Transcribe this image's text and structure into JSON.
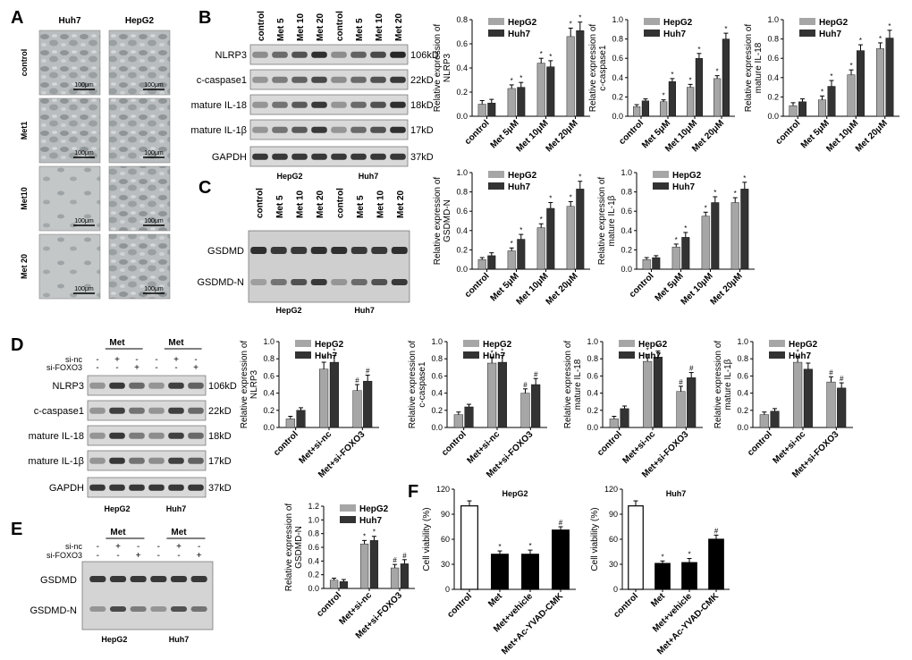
{
  "panel_letters": {
    "a": "A",
    "b": "B",
    "c": "C",
    "d": "D",
    "e": "E",
    "f": "F"
  },
  "colors": {
    "hepg2": "#a6a6a6",
    "huh7": "#333333",
    "control_bar": "#ffffff",
    "treated_bar": "#000000",
    "cell_bg": "#b9bdbf"
  },
  "panel_a": {
    "columns": [
      "Huh7",
      "HepG2"
    ],
    "rows": [
      "control",
      "Met1",
      "Met10",
      "Met 20"
    ],
    "scale_label": "100μm"
  },
  "panel_b": {
    "lanes": [
      "control",
      "Met 5",
      "Met 10",
      "Met 20",
      "control",
      "Met 5",
      "Met 10",
      "Met 20"
    ],
    "bands": [
      {
        "name": "NLRP3",
        "kd": "106kD"
      },
      {
        "name": "c-caspase1",
        "kd": "22kD"
      },
      {
        "name": "mature IL-18",
        "kd": "18kD"
      },
      {
        "name": "mature IL-1β",
        "kd": "17kD"
      },
      {
        "name": "GAPDH",
        "kd": "37kD"
      }
    ],
    "groups": [
      "HepG2",
      "Huh7"
    ]
  },
  "panel_c": {
    "lanes": [
      "control",
      "Met 5",
      "Met 10",
      "Met 20",
      "control",
      "Met 5",
      "Met 10",
      "Met 20"
    ],
    "bands": [
      "GSDMD",
      "GSDMD-N"
    ],
    "groups": [
      "HepG2",
      "Huh7"
    ]
  },
  "panel_d": {
    "met_label": "Met",
    "rows": [
      {
        "name": "si-nc",
        "hepg2": [
          "-",
          "+",
          "-"
        ],
        "huh7": [
          "-",
          "+",
          "-"
        ]
      },
      {
        "name": "si-FOXO3",
        "hepg2": [
          "-",
          "-",
          "+"
        ],
        "huh7": [
          "-",
          "-",
          "+"
        ]
      }
    ],
    "bands": [
      {
        "name": "NLRP3",
        "kd": "106kD"
      },
      {
        "name": "c-caspase1",
        "kd": "22kD"
      },
      {
        "name": "mature IL-18",
        "kd": "18kD"
      },
      {
        "name": "mature IL-1β",
        "kd": "17kD"
      },
      {
        "name": "GAPDH",
        "kd": "37kD"
      }
    ],
    "groups": [
      "HepG2",
      "Huh7"
    ]
  },
  "panel_e": {
    "met_label": "Met",
    "rows": [
      {
        "name": "si-nc",
        "hepg2": [
          "-",
          "+",
          "-"
        ],
        "huh7": [
          "-",
          "+",
          "-"
        ]
      },
      {
        "name": "si-FOXO3",
        "hepg2": [
          "-",
          "-",
          "+"
        ],
        "huh7": [
          "-",
          "-",
          "+"
        ]
      }
    ],
    "bands": [
      "GSDMD",
      "GSDMD-N"
    ],
    "groups": [
      "HepG2",
      "Huh7"
    ]
  },
  "chart_data": [
    {
      "id": "b1",
      "type": "bar",
      "ylabel": [
        "Relative expression of",
        "NLRP3"
      ],
      "categories": [
        "control",
        "Met 5μM",
        "Met 10μM",
        "Met 20μM"
      ],
      "series": [
        {
          "name": "HepG2",
          "values": [
            0.1,
            0.23,
            0.44,
            0.66
          ],
          "err": [
            0.03,
            0.03,
            0.04,
            0.07
          ],
          "sig": [
            "",
            "*",
            "*",
            "*"
          ]
        },
        {
          "name": "Huh7",
          "values": [
            0.11,
            0.24,
            0.41,
            0.71
          ],
          "err": [
            0.03,
            0.04,
            0.05,
            0.07
          ],
          "sig": [
            "",
            "*",
            "*",
            "*"
          ]
        }
      ],
      "yticks": [
        "0.0",
        "0.2",
        "0.4",
        "0.6",
        "0.8"
      ],
      "ylim": [
        0,
        0.8
      ]
    },
    {
      "id": "b2",
      "type": "bar",
      "ylabel": [
        "Relative expression of",
        "c-caspase1"
      ],
      "categories": [
        "control",
        "Met 5μM",
        "Met 10μM",
        "Met 20μM"
      ],
      "series": [
        {
          "name": "HepG2",
          "values": [
            0.1,
            0.15,
            0.3,
            0.39
          ],
          "err": [
            0.02,
            0.02,
            0.03,
            0.03
          ],
          "sig": [
            "",
            "*",
            "*",
            "*"
          ]
        },
        {
          "name": "Huh7",
          "values": [
            0.16,
            0.36,
            0.6,
            0.8
          ],
          "err": [
            0.02,
            0.03,
            0.05,
            0.06
          ],
          "sig": [
            "",
            "*",
            "*",
            "*"
          ]
        }
      ],
      "yticks": [
        "0.0",
        "0.2",
        "0.4",
        "0.6",
        "0.8",
        "1.0"
      ],
      "ylim": [
        0,
        1.0
      ]
    },
    {
      "id": "b3",
      "type": "bar",
      "ylabel": [
        "Relative expression of",
        "mature IL-18"
      ],
      "categories": [
        "control",
        "Met 5μM",
        "Met 10μM",
        "Met 20μM"
      ],
      "series": [
        {
          "name": "HepG2",
          "values": [
            0.11,
            0.17,
            0.43,
            0.7
          ],
          "err": [
            0.03,
            0.04,
            0.05,
            0.06
          ],
          "sig": [
            "",
            "*",
            "*",
            "*"
          ]
        },
        {
          "name": "Huh7",
          "values": [
            0.15,
            0.31,
            0.68,
            0.81
          ],
          "err": [
            0.03,
            0.06,
            0.06,
            0.08
          ],
          "sig": [
            "",
            "*",
            "*",
            "*"
          ]
        }
      ],
      "yticks": [
        "0.0",
        "0.2",
        "0.4",
        "0.6",
        "0.8",
        "1.0"
      ],
      "ylim": [
        0,
        1.0
      ]
    },
    {
      "id": "c1",
      "type": "bar",
      "ylabel": [
        "Relative expression of",
        "GSDMD-N"
      ],
      "categories": [
        "control",
        "Met 5μM",
        "Met 10μM",
        "Met 20μM"
      ],
      "series": [
        {
          "name": "HepG2",
          "values": [
            0.1,
            0.19,
            0.43,
            0.65
          ],
          "err": [
            0.02,
            0.03,
            0.04,
            0.05
          ],
          "sig": [
            "",
            "*",
            "*",
            "*"
          ]
        },
        {
          "name": "Huh7",
          "values": [
            0.14,
            0.31,
            0.63,
            0.83
          ],
          "err": [
            0.03,
            0.05,
            0.06,
            0.08
          ],
          "sig": [
            "",
            "*",
            "*",
            "*"
          ]
        }
      ],
      "yticks": [
        "0.0",
        "0.2",
        "0.4",
        "0.6",
        "0.8",
        "1.0"
      ],
      "ylim": [
        0,
        1.0
      ]
    },
    {
      "id": "c2",
      "type": "bar",
      "ylabel": [
        "Relative expression of",
        "mature IL-1β"
      ],
      "categories": [
        "control",
        "Met 5μM",
        "Met 10μM",
        "Met 20μM"
      ],
      "series": [
        {
          "name": "HepG2",
          "values": [
            0.1,
            0.23,
            0.55,
            0.69
          ],
          "err": [
            0.02,
            0.03,
            0.04,
            0.05
          ],
          "sig": [
            "",
            "*",
            "*",
            "*"
          ]
        },
        {
          "name": "Huh7",
          "values": [
            0.12,
            0.33,
            0.69,
            0.83
          ],
          "err": [
            0.02,
            0.05,
            0.06,
            0.07
          ],
          "sig": [
            "",
            "*",
            "*",
            "*"
          ]
        }
      ],
      "yticks": [
        "0.0",
        "0.2",
        "0.4",
        "0.6",
        "0.8",
        "1.0"
      ],
      "ylim": [
        0,
        1.0
      ]
    },
    {
      "id": "d1",
      "type": "bar",
      "ylabel": [
        "Relative expression of",
        "NLRP3"
      ],
      "categories": [
        "control",
        "Met+si-nc",
        "Met+si-FOXO3"
      ],
      "series": [
        {
          "name": "HepG2",
          "values": [
            0.1,
            0.68,
            0.43
          ],
          "err": [
            0.03,
            0.08,
            0.07
          ],
          "sig": [
            "",
            "*",
            "#"
          ]
        },
        {
          "name": "Huh7",
          "values": [
            0.2,
            0.76,
            0.54
          ],
          "err": [
            0.03,
            0.08,
            0.07
          ],
          "sig": [
            "",
            "*",
            "#"
          ]
        }
      ],
      "yticks": [
        "0.0",
        "0.2",
        "0.4",
        "0.6",
        "0.8",
        "1.0"
      ],
      "ylim": [
        0,
        1.0
      ]
    },
    {
      "id": "d2",
      "type": "bar",
      "ylabel": [
        "Relative expression of",
        "c-caspase1"
      ],
      "categories": [
        "control",
        "Met+si-nc",
        "Met+si-FOXO3"
      ],
      "series": [
        {
          "name": "HepG2",
          "values": [
            0.15,
            0.75,
            0.4
          ],
          "err": [
            0.03,
            0.07,
            0.05
          ],
          "sig": [
            "",
            "*",
            "#"
          ]
        },
        {
          "name": "Huh7",
          "values": [
            0.24,
            0.76,
            0.5
          ],
          "err": [
            0.03,
            0.08,
            0.07
          ],
          "sig": [
            "",
            "*",
            "#"
          ]
        }
      ],
      "yticks": [
        "0.0",
        "0.2",
        "0.4",
        "0.6",
        "0.8",
        "1.0"
      ],
      "ylim": [
        0,
        1.0
      ]
    },
    {
      "id": "d3",
      "type": "bar",
      "ylabel": [
        "Relative expression of",
        "mature IL-18"
      ],
      "categories": [
        "control",
        "Met+si-nc",
        "Met+si-FOXO3"
      ],
      "series": [
        {
          "name": "HepG2",
          "values": [
            0.1,
            0.77,
            0.42
          ],
          "err": [
            0.03,
            0.08,
            0.06
          ],
          "sig": [
            "",
            "*",
            "#"
          ]
        },
        {
          "name": "Huh7",
          "values": [
            0.22,
            0.82,
            0.58
          ],
          "err": [
            0.03,
            0.07,
            0.06
          ],
          "sig": [
            "",
            "*",
            "#"
          ]
        }
      ],
      "yticks": [
        "0.0",
        "0.2",
        "0.4",
        "0.6",
        "0.8",
        "1.0"
      ],
      "ylim": [
        0,
        1.0
      ]
    },
    {
      "id": "d4",
      "type": "bar",
      "ylabel": [
        "Relative expression of",
        "mature IL-1β"
      ],
      "categories": [
        "control",
        "Met+si-nc",
        "Met+si-FOXO3"
      ],
      "series": [
        {
          "name": "HepG2",
          "values": [
            0.15,
            0.76,
            0.53
          ],
          "err": [
            0.03,
            0.07,
            0.06
          ],
          "sig": [
            "",
            "*",
            "#"
          ]
        },
        {
          "name": "Huh7",
          "values": [
            0.19,
            0.68,
            0.46
          ],
          "err": [
            0.03,
            0.07,
            0.06
          ],
          "sig": [
            "",
            "*",
            "#"
          ]
        }
      ],
      "yticks": [
        "0.0",
        "0.2",
        "0.4",
        "0.6",
        "0.8",
        "1.0"
      ],
      "ylim": [
        0,
        1.0
      ]
    },
    {
      "id": "e1",
      "type": "bar",
      "ylabel": [
        "Relative expression of",
        "GSDMD-N"
      ],
      "categories": [
        "control",
        "Met+si-nc",
        "Met+si-FOXO3"
      ],
      "series": [
        {
          "name": "HepG2",
          "values": [
            0.12,
            0.65,
            0.3
          ],
          "err": [
            0.03,
            0.05,
            0.05
          ],
          "sig": [
            "",
            "*",
            "#"
          ]
        },
        {
          "name": "Huh7",
          "values": [
            0.1,
            0.7,
            0.36
          ],
          "err": [
            0.03,
            0.06,
            0.06
          ],
          "sig": [
            "",
            "*",
            "#"
          ]
        }
      ],
      "yticks": [
        "0.0",
        "0.2",
        "0.4",
        "0.6",
        "0.8",
        "1.0",
        "1.2"
      ],
      "ylim": [
        0,
        1.2
      ]
    },
    {
      "id": "f1",
      "type": "bar",
      "title": "HepG2",
      "ylabel": [
        "Cell viability (%)"
      ],
      "categories": [
        "control",
        "Met",
        "Met+vehicle",
        "Met+Ac-YVAD-CMK"
      ],
      "series": [
        {
          "name": "viability",
          "values": [
            100,
            42,
            42,
            71
          ],
          "err": [
            6,
            4,
            5,
            4
          ],
          "sig": [
            "",
            "*",
            "*",
            "#"
          ]
        }
      ],
      "yticks": [
        "0",
        "30",
        "60",
        "90",
        "120"
      ],
      "ylim": [
        0,
        120
      ]
    },
    {
      "id": "f2",
      "type": "bar",
      "title": "Huh7",
      "ylabel": [
        "Cell viability (%)"
      ],
      "categories": [
        "control",
        "Met",
        "Met+vehicle",
        "Met+Ac-YVAD-CMK"
      ],
      "series": [
        {
          "name": "viability",
          "values": [
            100,
            31,
            32,
            60
          ],
          "err": [
            6,
            3,
            5,
            5
          ],
          "sig": [
            "",
            "*",
            "*",
            "#"
          ]
        }
      ],
      "yticks": [
        "0",
        "30",
        "60",
        "90",
        "120"
      ],
      "ylim": [
        0,
        120
      ]
    }
  ]
}
